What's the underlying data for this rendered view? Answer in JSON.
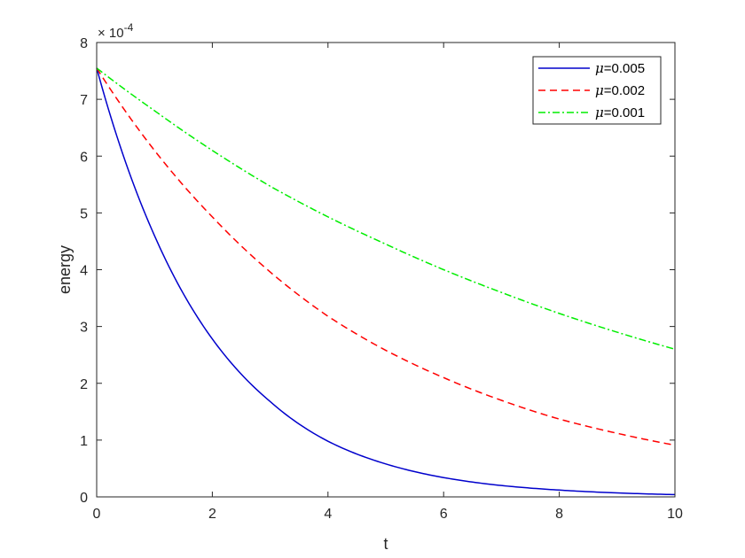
{
  "chart_data": {
    "type": "line",
    "xlabel": "t",
    "ylabel": "energy",
    "y_exponent_label": "× 10",
    "y_exponent_power": "-4",
    "xlim": [
      0,
      10
    ],
    "ylim": [
      0,
      8
    ],
    "x_ticks": [
      "0",
      "2",
      "4",
      "6",
      "8",
      "10"
    ],
    "y_ticks": [
      "0",
      "1",
      "2",
      "3",
      "4",
      "5",
      "6",
      "7",
      "8"
    ],
    "grid": false,
    "legend_position": "top-right",
    "x": [
      0,
      1,
      2,
      3,
      4,
      5,
      6,
      7,
      8,
      9,
      10
    ],
    "series": [
      {
        "name_symbol": "μ",
        "name_value": "=0.005",
        "color": "#0000cc",
        "style": "solid",
        "values": [
          7.55,
          4.6,
          2.78,
          1.68,
          0.98,
          0.58,
          0.34,
          0.2,
          0.12,
          0.07,
          0.04
        ]
      },
      {
        "name_symbol": "μ",
        "name_value": "=0.002",
        "color": "#ff0000",
        "style": "dashed",
        "values": [
          7.55,
          6.1,
          4.93,
          3.96,
          3.18,
          2.58,
          2.1,
          1.7,
          1.37,
          1.12,
          0.91
        ]
      },
      {
        "name_symbol": "μ",
        "name_value": "=0.001",
        "color": "#00ee00",
        "style": "dashdot",
        "values": [
          7.55,
          6.8,
          6.1,
          5.47,
          4.93,
          4.45,
          4.0,
          3.6,
          3.23,
          2.9,
          2.6
        ]
      }
    ]
  }
}
